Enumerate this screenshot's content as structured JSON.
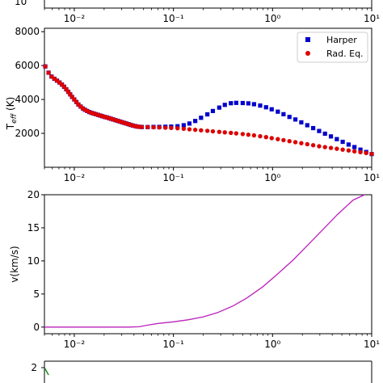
{
  "chart_data": [
    {
      "type": "scatter",
      "note_visible": "top panel cut off; only bottom axis visible",
      "xscale": "log",
      "xlim": [
        0.005,
        10
      ],
      "x_ticks": [
        0.01,
        0.1,
        1,
        10
      ],
      "x_tick_labels": [
        "10⁻²",
        "10⁻¹",
        "10⁰",
        "10¹"
      ],
      "y_tick_labels_visible": [
        "10"
      ]
    },
    {
      "type": "scatter",
      "xscale": "log",
      "xlim": [
        0.005,
        10
      ],
      "ylim": [
        0,
        8200
      ],
      "ylabel": "T_eff (K)",
      "y_ticks": [
        2000,
        4000,
        6000,
        8000
      ],
      "y_tick_labels": [
        "2000",
        "4000",
        "6000",
        "8000"
      ],
      "x_tick_labels": [
        "10⁻²",
        "10⁻¹",
        "10⁰",
        "10¹"
      ],
      "legend": {
        "placement": "top-right"
      },
      "series": [
        {
          "name": "Harper",
          "color": "#0000cc",
          "marker": "square",
          "x": [
            0.0051,
            0.0055,
            0.0059,
            0.0063,
            0.0067,
            0.0071,
            0.0075,
            0.0079,
            0.0083,
            0.0087,
            0.0091,
            0.0095,
            0.01,
            0.0105,
            0.011,
            0.0116,
            0.0122,
            0.0128,
            0.0135,
            0.0142,
            0.0149,
            0.0157,
            0.0165,
            0.0174,
            0.0183,
            0.0192,
            0.0202,
            0.0213,
            0.0224,
            0.0235,
            0.0247,
            0.026,
            0.0274,
            0.0288,
            0.0303,
            0.0319,
            0.0335,
            0.0353,
            0.0371,
            0.039,
            0.0411,
            0.0432,
            0.0455,
            0.0479,
            0.055,
            0.063,
            0.072,
            0.083,
            0.095,
            0.11,
            0.127,
            0.145,
            0.166,
            0.19,
            0.22,
            0.25,
            0.29,
            0.33,
            0.38,
            0.43,
            0.5,
            0.57,
            0.65,
            0.75,
            0.86,
            0.98,
            1.13,
            1.29,
            1.48,
            1.7,
            1.95,
            2.24,
            2.57,
            2.95,
            3.38,
            3.88,
            4.45,
            5.1,
            5.85,
            6.7,
            7.7,
            8.8,
            10
          ],
          "y": [
            5950,
            5580,
            5350,
            5220,
            5110,
            5000,
            4880,
            4750,
            4600,
            4450,
            4300,
            4150,
            4000,
            3850,
            3700,
            3580,
            3470,
            3390,
            3320,
            3260,
            3210,
            3170,
            3130,
            3090,
            3050,
            3010,
            2970,
            2940,
            2900,
            2860,
            2820,
            2780,
            2740,
            2700,
            2660,
            2620,
            2580,
            2540,
            2500,
            2460,
            2430,
            2400,
            2385,
            2375,
            2370,
            2380,
            2380,
            2390,
            2400,
            2420,
            2480,
            2580,
            2730,
            2920,
            3120,
            3320,
            3520,
            3680,
            3780,
            3800,
            3790,
            3770,
            3720,
            3640,
            3540,
            3420,
            3280,
            3130,
            2970,
            2820,
            2650,
            2480,
            2310,
            2140,
            1980,
            1820,
            1660,
            1500,
            1340,
            1190,
            1040,
            900,
            780
          ]
        },
        {
          "name": "Rad. Eq.",
          "color": "#dd0000",
          "marker": "circle",
          "x": [
            0.0051,
            0.0055,
            0.0059,
            0.0063,
            0.0067,
            0.0071,
            0.0075,
            0.0079,
            0.0083,
            0.0087,
            0.0091,
            0.0095,
            0.01,
            0.0105,
            0.011,
            0.0116,
            0.0122,
            0.0128,
            0.0135,
            0.0142,
            0.0149,
            0.0157,
            0.0165,
            0.0174,
            0.0183,
            0.0192,
            0.0202,
            0.0213,
            0.0224,
            0.0235,
            0.0247,
            0.026,
            0.0274,
            0.0288,
            0.0303,
            0.0319,
            0.0335,
            0.0353,
            0.0371,
            0.039,
            0.0411,
            0.0432,
            0.0455,
            0.0479,
            0.055,
            0.063,
            0.072,
            0.083,
            0.095,
            0.11,
            0.127,
            0.145,
            0.166,
            0.19,
            0.22,
            0.25,
            0.29,
            0.33,
            0.38,
            0.43,
            0.5,
            0.57,
            0.65,
            0.75,
            0.86,
            0.98,
            1.13,
            1.29,
            1.48,
            1.7,
            1.95,
            2.24,
            2.57,
            2.95,
            3.38,
            3.88,
            4.45,
            5.1,
            5.85,
            6.7,
            7.7,
            8.8,
            10
          ],
          "y": [
            5950,
            5580,
            5350,
            5220,
            5110,
            5000,
            4880,
            4750,
            4600,
            4450,
            4300,
            4150,
            4000,
            3850,
            3700,
            3580,
            3470,
            3390,
            3320,
            3260,
            3210,
            3170,
            3130,
            3090,
            3050,
            3010,
            2970,
            2940,
            2900,
            2860,
            2820,
            2780,
            2740,
            2700,
            2660,
            2620,
            2580,
            2540,
            2500,
            2460,
            2430,
            2400,
            2385,
            2375,
            2370,
            2360,
            2350,
            2335,
            2320,
            2300,
            2270,
            2240,
            2210,
            2180,
            2150,
            2120,
            2090,
            2060,
            2030,
            2000,
            1960,
            1920,
            1880,
            1830,
            1780,
            1720,
            1660,
            1600,
            1540,
            1480,
            1420,
            1360,
            1300,
            1240,
            1190,
            1140,
            1090,
            1040,
            990,
            940,
            890,
            840,
            790
          ]
        }
      ]
    },
    {
      "type": "line",
      "xscale": "log",
      "xlim": [
        0.005,
        10
      ],
      "ylim": [
        -1,
        20
      ],
      "ylabel": "v(km/s)",
      "y_ticks": [
        0,
        5,
        10,
        15,
        20
      ],
      "y_tick_labels": [
        "0",
        "5",
        "10",
        "15",
        "20"
      ],
      "x_tick_labels": [
        "10⁻²",
        "10⁻¹",
        "10⁰",
        "10¹"
      ],
      "series": [
        {
          "color": "#bb22bb",
          "x": [
            0.005,
            0.01,
            0.02,
            0.035,
            0.045,
            0.055,
            0.07,
            0.1,
            0.14,
            0.2,
            0.28,
            0.4,
            0.55,
            0.8,
            1.1,
            1.6,
            2.2,
            3.2,
            4.5,
            6.5,
            8.5
          ],
          "y": [
            0,
            0,
            0,
            0,
            0.05,
            0.3,
            0.55,
            0.8,
            1.1,
            1.55,
            2.2,
            3.2,
            4.4,
            6.1,
            7.9,
            10.1,
            12.2,
            14.7,
            17.0,
            19.2,
            20.0
          ]
        }
      ]
    },
    {
      "type": "line",
      "note_visible": "bottom panel cut off; only top portion visible",
      "xlim": [
        0.005,
        10
      ],
      "y_tick_labels_visible": [
        "2"
      ],
      "series": [
        {
          "color": "#228822",
          "x": [
            0.005,
            0.0055
          ],
          "y": [
            2.0,
            1.7
          ]
        }
      ]
    }
  ]
}
